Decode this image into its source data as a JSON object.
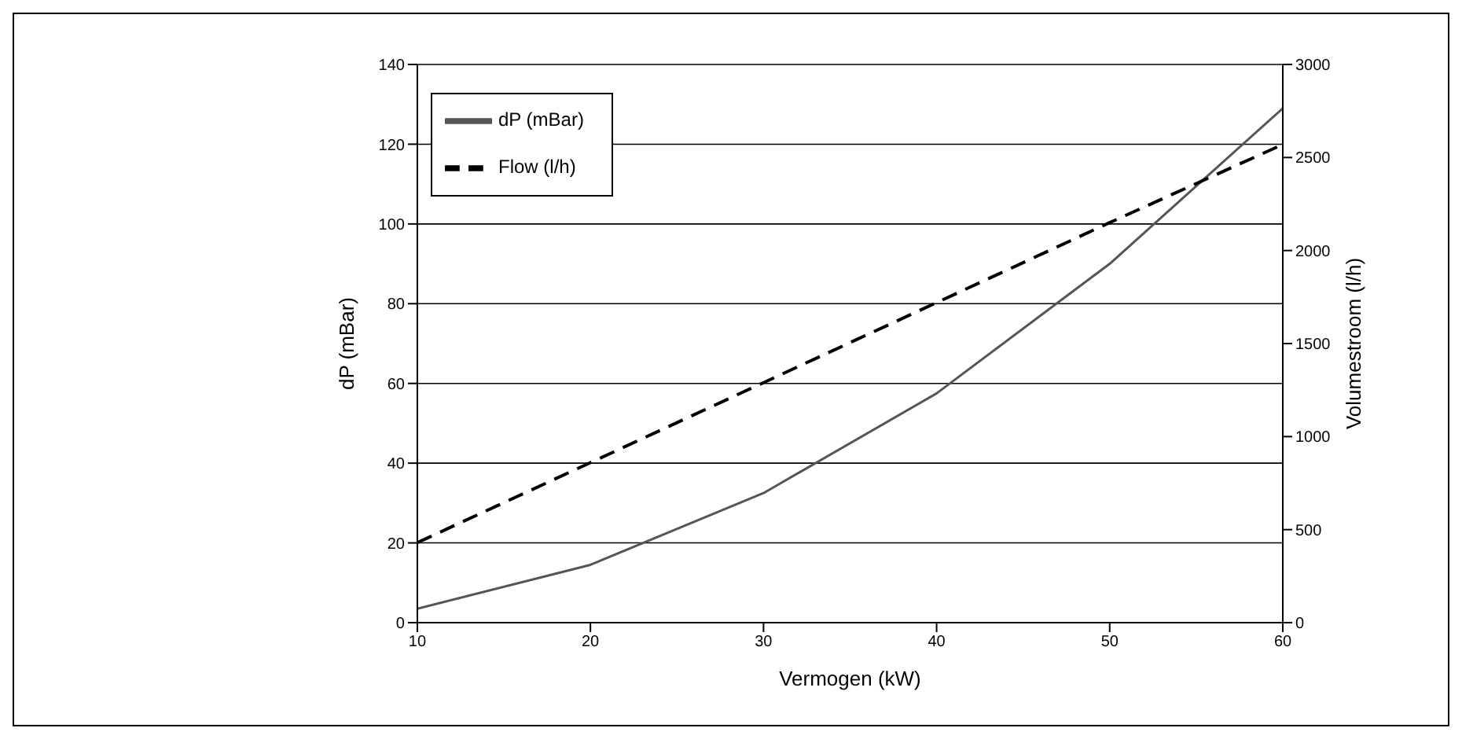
{
  "chart_data": {
    "type": "line",
    "xlabel": "Vermogen (kW)",
    "ylabel": "dP (mBar)",
    "y2label": "Volumestroom (l/h)",
    "x": [
      10,
      20,
      30,
      40,
      50,
      60
    ],
    "series": [
      {
        "name": "dP (mBar)",
        "color": "#555555",
        "values": [
          3.5,
          14.5,
          32.5,
          57.5,
          90,
          129
        ],
        "line_style": "solid"
      },
      {
        "name": "Flow (l/h)",
        "color": "#000000",
        "values": [
          430,
          860,
          1290,
          1720,
          2150,
          2570
        ],
        "axis": "y2",
        "line_style": "dashed"
      }
    ],
    "xlim": [
      10,
      60
    ],
    "xticks": [
      10,
      20,
      30,
      40,
      50,
      60
    ],
    "ylim": [
      0,
      140
    ],
    "yticks": [
      0,
      20,
      40,
      60,
      80,
      100,
      120,
      140
    ],
    "y2lim": [
      0,
      3000
    ],
    "y2ticks": [
      0,
      500,
      1000,
      1500,
      2000,
      2500,
      3000
    ],
    "grid": "y",
    "legend": "top left",
    "marker": "none"
  }
}
